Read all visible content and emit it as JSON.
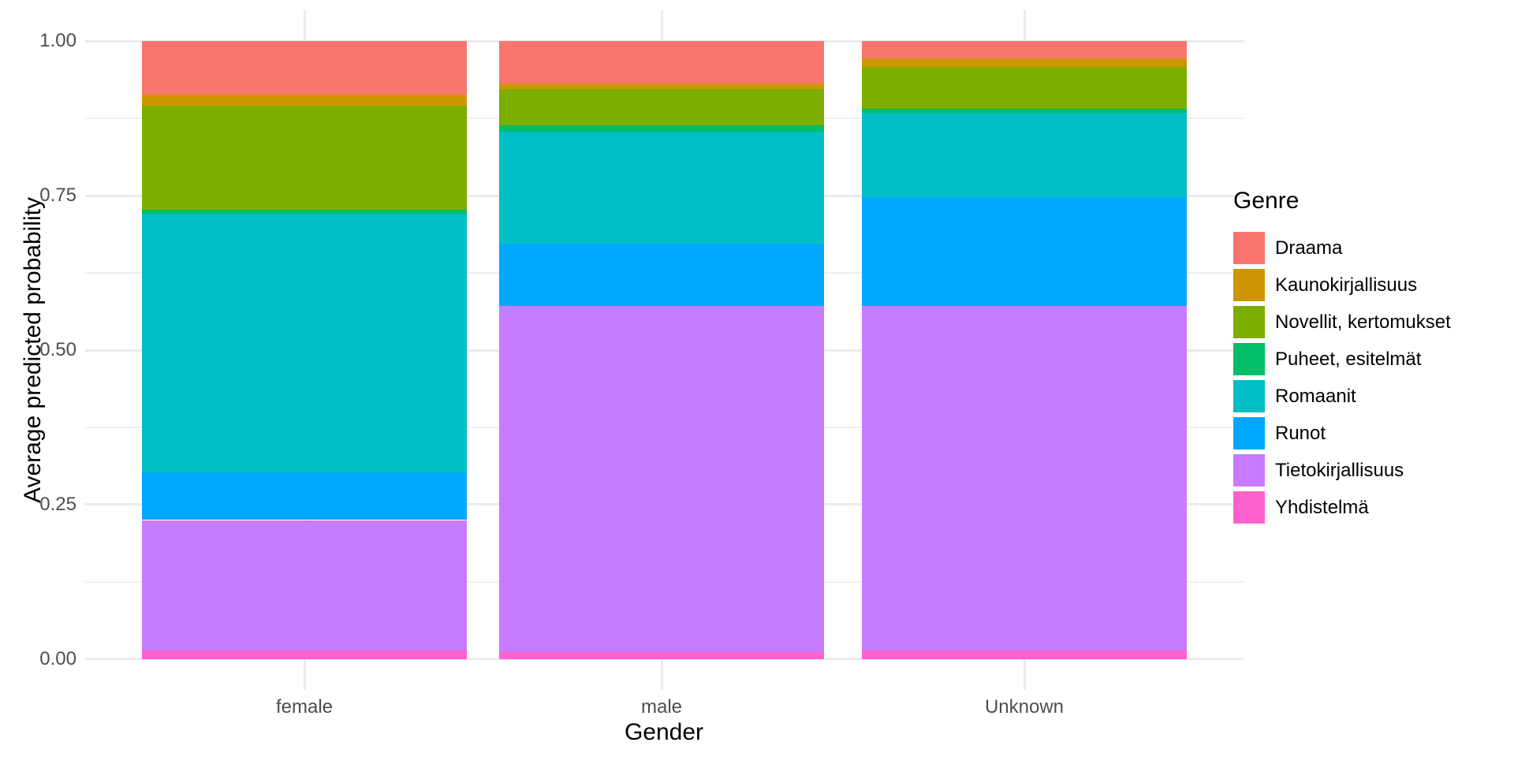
{
  "chart_data": {
    "type": "bar",
    "stacked": true,
    "title": "",
    "xlabel": "Gender",
    "ylabel": "Average predicted probability",
    "categories": [
      "female",
      "male",
      "Unknown"
    ],
    "ylim": [
      0,
      1
    ],
    "yticks": [
      0,
      0.25,
      0.5,
      0.75,
      1
    ],
    "ytick_labels": [
      "0.00",
      "0.25",
      "0.50",
      "0.75",
      "1.00"
    ],
    "grid": true,
    "legend_title": "Genre",
    "legend_position": "right",
    "stack_order": "reverse-of-legend (first legend entry on top of bar)",
    "series": [
      {
        "name": "Draama",
        "color": "#F8766D",
        "values": [
          0.086,
          0.069,
          0.028
        ]
      },
      {
        "name": "Kaunokirjallisuus",
        "color": "#CD9600",
        "values": [
          0.019,
          0.009,
          0.014
        ]
      },
      {
        "name": "Novellit, kertomukset",
        "color": "#7CAE00",
        "values": [
          0.168,
          0.058,
          0.068
        ]
      },
      {
        "name": "Puheet, esitelmät",
        "color": "#00BE67",
        "values": [
          0.006,
          0.01,
          0.006
        ]
      },
      {
        "name": "Romaanit",
        "color": "#00BFC4",
        "values": [
          0.419,
          0.182,
          0.136
        ]
      },
      {
        "name": "Runot",
        "color": "#00A9FF",
        "values": [
          0.077,
          0.101,
          0.176
        ]
      },
      {
        "name": "Tietokirjallisuus",
        "color": "#C77CFF",
        "values": [
          0.211,
          0.56,
          0.558
        ]
      },
      {
        "name": "Yhdistelmä",
        "color": "#FF61CC",
        "values": [
          0.014,
          0.011,
          0.014
        ]
      }
    ],
    "colors": {
      "grid_major": "#EBEBEB",
      "grid_minor": "#F0F0F0",
      "tick_text": "#4D4D4D",
      "title_text": "#000000",
      "background": "#FFFFFF"
    }
  }
}
